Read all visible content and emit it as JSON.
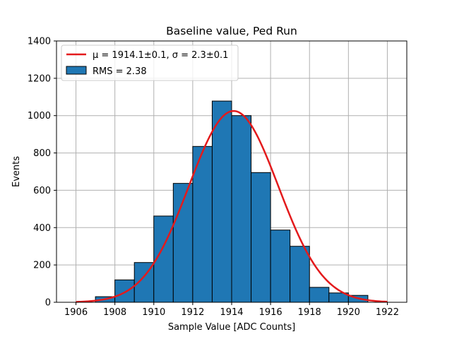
{
  "chart_data": {
    "type": "bar",
    "title": "Baseline value, Ped Run",
    "xlabel": "Sample Value [ADC Counts]",
    "ylabel": "Events",
    "xlim": [
      1905,
      1923
    ],
    "ylim": [
      0,
      1400
    ],
    "xticks": [
      1906,
      1908,
      1910,
      1912,
      1914,
      1916,
      1918,
      1920,
      1922
    ],
    "yticks": [
      0,
      200,
      400,
      600,
      800,
      1000,
      1200,
      1400
    ],
    "grid": true,
    "legend_position": "top-left",
    "bin_width": 1,
    "bins": [
      {
        "x": 1906.5,
        "value": 0
      },
      {
        "x": 1907.5,
        "value": 30
      },
      {
        "x": 1908.5,
        "value": 120
      },
      {
        "x": 1909.5,
        "value": 213
      },
      {
        "x": 1910.5,
        "value": 462
      },
      {
        "x": 1911.5,
        "value": 637
      },
      {
        "x": 1912.5,
        "value": 835
      },
      {
        "x": 1913.5,
        "value": 1078
      },
      {
        "x": 1914.5,
        "value": 1000
      },
      {
        "x": 1915.5,
        "value": 695
      },
      {
        "x": 1916.5,
        "value": 387
      },
      {
        "x": 1917.5,
        "value": 300
      },
      {
        "x": 1918.5,
        "value": 80
      },
      {
        "x": 1919.5,
        "value": 50
      },
      {
        "x": 1920.5,
        "value": 37
      }
    ],
    "series": [
      {
        "name": "μ = 1914.1±0.1, σ = 2.3±0.1",
        "type": "line",
        "color": "#e31a1c",
        "gauss": {
          "mu": 1914.1,
          "sigma": 2.3,
          "amplitude": 1025
        },
        "x_range": [
          1906,
          1922
        ]
      },
      {
        "name": "RMS = 2.38",
        "type": "bar",
        "color": "#1f77b4",
        "edgecolor": "#000000"
      }
    ]
  }
}
